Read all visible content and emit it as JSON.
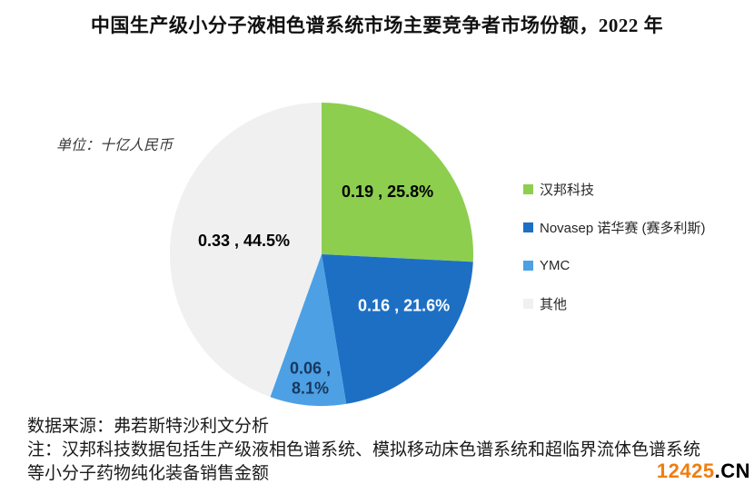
{
  "header": {
    "title": "中国生产级小分子液相色谱系统市场主要竞争者市场份额，2022 年"
  },
  "chart_data": {
    "type": "pie",
    "title": "中国生产级小分子液相色谱系统市场主要竞争者市场份额，2022 年",
    "unit_label": "单位：十亿人民币",
    "start_angle_deg": 0,
    "direction": "clockwise",
    "legend_position": "right",
    "slices": [
      {
        "name": "汉邦科技",
        "value": 0.19,
        "pct": 25.8,
        "color": "#8DCE4F",
        "label_lines": [
          "0.19 , 25.8%"
        ],
        "label_color": "#000000",
        "label_r": 0.6
      },
      {
        "name": "Novasep 诺华赛 (赛多利斯)",
        "value": 0.16,
        "pct": 21.6,
        "color": "#1D6FC4",
        "label_lines": [
          "0.16 , 21.6%"
        ],
        "label_color": "#FFFFFF",
        "label_r": 0.64,
        "label_angle": 122
      },
      {
        "name": "YMC",
        "value": 0.06,
        "pct": 8.1,
        "color": "#4DA0E4",
        "label_lines": [
          "0.06 ,",
          "8.1%"
        ],
        "label_color": "#17375E",
        "label_r": 0.82
      },
      {
        "name": "其他",
        "value": 0.33,
        "pct": 44.5,
        "color": "#F0F0F0",
        "label_lines": [
          "0.33 , 44.5%"
        ],
        "label_color": "#000000",
        "label_r": 0.52,
        "label_angle": 280
      }
    ]
  },
  "footer": {
    "source": "数据来源：弗若斯特沙利文分析",
    "note_lines": [
      "注：汉邦科技数据包括生产级液相色谱系统、模拟移动床色谱系统和超临界流体色谱系统",
      "等小分子药物纯化装备销售金额"
    ]
  },
  "watermark": {
    "number": "12425",
    "tld": ".CN",
    "number_color": "#F07D10",
    "tld_color": "#000000"
  }
}
